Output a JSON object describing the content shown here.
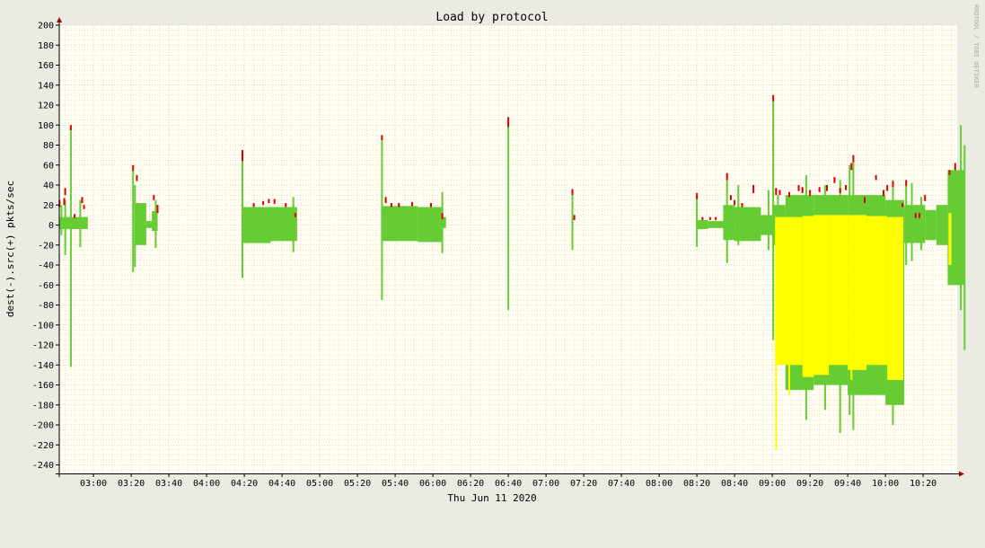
{
  "chart_data": {
    "type": "area",
    "title": "Load by protocol",
    "xlabel": "Thu Jun 11 2020",
    "ylabel": "dest(-).src(+)  pkts/sec",
    "watermark": "RRDTOOL / TOBI OETIKER",
    "ylim": [
      -250,
      205
    ],
    "xlim_minutes": [
      162,
      643
    ],
    "grid": true,
    "y_ticks": [
      200,
      180,
      160,
      140,
      120,
      100,
      80,
      60,
      40,
      20,
      0,
      -20,
      -40,
      -60,
      -80,
      -100,
      -120,
      -140,
      -160,
      -180,
      -200,
      -220,
      -240
    ],
    "x_ticks": [
      {
        "label": "03:00",
        "minute": 180
      },
      {
        "label": "03:20",
        "minute": 200
      },
      {
        "label": "03:40",
        "minute": 220
      },
      {
        "label": "04:00",
        "minute": 240
      },
      {
        "label": "04:20",
        "minute": 260
      },
      {
        "label": "04:40",
        "minute": 280
      },
      {
        "label": "05:00",
        "minute": 300
      },
      {
        "label": "05:20",
        "minute": 320
      },
      {
        "label": "05:40",
        "minute": 340
      },
      {
        "label": "06:00",
        "minute": 360
      },
      {
        "label": "06:20",
        "minute": 380
      },
      {
        "label": "06:40",
        "minute": 400
      },
      {
        "label": "07:00",
        "minute": 420
      },
      {
        "label": "07:20",
        "minute": 440
      },
      {
        "label": "07:40",
        "minute": 460
      },
      {
        "label": "08:00",
        "minute": 480
      },
      {
        "label": "08:20",
        "minute": 500
      },
      {
        "label": "08:40",
        "minute": 520
      },
      {
        "label": "09:00",
        "minute": 540
      },
      {
        "label": "09:20",
        "minute": 560
      },
      {
        "label": "09:40",
        "minute": 580
      },
      {
        "label": "10:00",
        "minute": 600
      },
      {
        "label": "10:20",
        "minute": 620
      }
    ],
    "colors": {
      "background": "#ebebe3",
      "plot": "#fffff4",
      "grid_minor": "#e8b8a0",
      "grid_major": "#d8a890",
      "series_red": "#dd0000",
      "series_green": "#66cc33",
      "series_yellow": "#ffff00",
      "axis_arrow": "#a00000"
    },
    "series": [
      {
        "color_key": "series_yellow",
        "segments": [
          {
            "start": 541.5,
            "end": 556,
            "src": 8,
            "dst": -140
          },
          {
            "start": 556,
            "end": 562,
            "src": 9,
            "dst": -152
          },
          {
            "start": 562,
            "end": 570,
            "src": 10,
            "dst": -150
          },
          {
            "start": 570,
            "end": 580,
            "src": 10,
            "dst": -140
          },
          {
            "start": 580,
            "end": 590,
            "src": 10,
            "dst": -145
          },
          {
            "start": 590,
            "end": 601,
            "src": 9,
            "dst": -140
          },
          {
            "start": 601,
            "end": 609.5,
            "src": 8,
            "dst": -155
          },
          {
            "start": 633.5,
            "end": 635,
            "src": 12,
            "dst": -40
          }
        ],
        "spikes": [
          {
            "t": 542,
            "dst": -225
          },
          {
            "t": 549,
            "dst": -170
          },
          {
            "t": 582,
            "dst": -155
          }
        ]
      },
      {
        "color_key": "series_green",
        "segments": [
          {
            "start": 162,
            "end": 177,
            "src": 8,
            "dst": -4
          },
          {
            "start": 202,
            "end": 208,
            "src": 22,
            "dst": -20
          },
          {
            "start": 208,
            "end": 211,
            "src": 4,
            "dst": -3
          },
          {
            "start": 211,
            "end": 214,
            "src": 14,
            "dst": -6
          },
          {
            "start": 259,
            "end": 274,
            "src": 18,
            "dst": -18
          },
          {
            "start": 274,
            "end": 288,
            "src": 18,
            "dst": -16
          },
          {
            "start": 333,
            "end": 352,
            "src": 19,
            "dst": -16
          },
          {
            "start": 352,
            "end": 365,
            "src": 18,
            "dst": -17
          },
          {
            "start": 365,
            "end": 367,
            "src": 8,
            "dst": -3
          },
          {
            "start": 500,
            "end": 506,
            "src": 5,
            "dst": -4
          },
          {
            "start": 506,
            "end": 514,
            "src": 4,
            "dst": -3
          },
          {
            "start": 514,
            "end": 520,
            "src": 20,
            "dst": -15
          },
          {
            "start": 520,
            "end": 534,
            "src": 18,
            "dst": -16
          },
          {
            "start": 534,
            "end": 540,
            "src": 10,
            "dst": -10
          },
          {
            "start": 540,
            "end": 547,
            "src": 20,
            "dst": -20
          },
          {
            "start": 547,
            "end": 562,
            "src": 30,
            "dst": -165
          },
          {
            "start": 562,
            "end": 580,
            "src": 30,
            "dst": -160
          },
          {
            "start": 580,
            "end": 600,
            "src": 30,
            "dst": -170
          },
          {
            "start": 600,
            "end": 610,
            "src": 25,
            "dst": -180
          },
          {
            "start": 610,
            "end": 621,
            "src": 20,
            "dst": -18
          },
          {
            "start": 621,
            "end": 627,
            "src": 15,
            "dst": -15
          },
          {
            "start": 627,
            "end": 633,
            "src": 20,
            "dst": -20
          },
          {
            "start": 633,
            "end": 642,
            "src": 55,
            "dst": -60
          }
        ],
        "spikes": [
          {
            "t": 163,
            "src": 20,
            "dst": -10
          },
          {
            "t": 165,
            "src": 25,
            "dst": -30
          },
          {
            "t": 168,
            "src": 97,
            "dst": -142
          },
          {
            "t": 173,
            "src": 25,
            "dst": -22
          },
          {
            "t": 201,
            "src": 55,
            "dst": -47
          },
          {
            "t": 202,
            "src": 40,
            "dst": -42
          },
          {
            "t": 213,
            "src": 25,
            "dst": -23
          },
          {
            "t": 259,
            "src": 65,
            "dst": -53
          },
          {
            "t": 286,
            "src": 28,
            "dst": -27
          },
          {
            "t": 333,
            "src": 85,
            "dst": -75
          },
          {
            "t": 365,
            "src": 33,
            "dst": -28
          },
          {
            "t": 400,
            "src": 98,
            "dst": -85
          },
          {
            "t": 434,
            "src": 30,
            "dst": -25
          },
          {
            "t": 500,
            "src": 28,
            "dst": -22
          },
          {
            "t": 516,
            "src": 45,
            "dst": -38
          },
          {
            "t": 522,
            "src": 40,
            "dst": -20
          },
          {
            "t": 538,
            "src": 35,
            "dst": -25
          },
          {
            "t": 540.5,
            "src": 125,
            "dst": -115
          },
          {
            "t": 543,
            "src": 30,
            "dst": -30
          },
          {
            "t": 558,
            "src": 50,
            "dst": -195
          },
          {
            "t": 568,
            "src": 40,
            "dst": -185
          },
          {
            "t": 576,
            "src": 45,
            "dst": -208
          },
          {
            "t": 581,
            "src": 60,
            "dst": -190
          },
          {
            "t": 583,
            "src": 65,
            "dst": -205
          },
          {
            "t": 604,
            "src": 45,
            "dst": -200
          },
          {
            "t": 611,
            "src": 40,
            "dst": -40
          },
          {
            "t": 614,
            "src": 42,
            "dst": -36
          },
          {
            "t": 619,
            "src": 28,
            "dst": -25
          },
          {
            "t": 640,
            "src": 100,
            "dst": -85
          },
          {
            "t": 642,
            "src": 80,
            "dst": -125
          }
        ]
      },
      {
        "color_key": "series_red",
        "spikes": [
          {
            "t": 162,
            "src": 25,
            "base": 18
          },
          {
            "t": 164.5,
            "src": 27,
            "base": 20
          },
          {
            "t": 165,
            "src": 37,
            "base": 30
          },
          {
            "t": 168,
            "src": 100,
            "base": 95
          },
          {
            "t": 170,
            "src": 11,
            "base": 7
          },
          {
            "t": 174,
            "src": 28,
            "base": 22
          },
          {
            "t": 175,
            "src": 20,
            "base": 16
          },
          {
            "t": 201,
            "src": 60,
            "base": 54
          },
          {
            "t": 203,
            "src": 50,
            "base": 44
          },
          {
            "t": 212,
            "src": 30,
            "base": 25
          },
          {
            "t": 214,
            "src": 20,
            "base": 12
          },
          {
            "t": 259,
            "src": 75,
            "base": 64
          },
          {
            "t": 265,
            "src": 22,
            "base": 18
          },
          {
            "t": 270,
            "src": 24,
            "base": 20
          },
          {
            "t": 273,
            "src": 26,
            "base": 22
          },
          {
            "t": 276,
            "src": 26,
            "base": 21
          },
          {
            "t": 282,
            "src": 22,
            "base": 18
          },
          {
            "t": 287,
            "src": 12,
            "base": 8
          },
          {
            "t": 333,
            "src": 90,
            "base": 85
          },
          {
            "t": 335,
            "src": 28,
            "base": 22
          },
          {
            "t": 338,
            "src": 22,
            "base": 18
          },
          {
            "t": 342,
            "src": 22,
            "base": 18
          },
          {
            "t": 349,
            "src": 23,
            "base": 19
          },
          {
            "t": 359,
            "src": 22,
            "base": 18
          },
          {
            "t": 365,
            "src": 12,
            "base": 6
          },
          {
            "t": 400,
            "src": 108,
            "base": 98
          },
          {
            "t": 434,
            "src": 36,
            "base": 30
          },
          {
            "t": 435,
            "src": 10,
            "base": 5
          },
          {
            "t": 500,
            "src": 32,
            "base": 26
          },
          {
            "t": 503,
            "src": 8,
            "base": 5
          },
          {
            "t": 507,
            "src": 8,
            "base": 5
          },
          {
            "t": 510,
            "src": 8,
            "base": 5
          },
          {
            "t": 516,
            "src": 52,
            "base": 45
          },
          {
            "t": 518,
            "src": 30,
            "base": 25
          },
          {
            "t": 520,
            "src": 25,
            "base": 20
          },
          {
            "t": 524,
            "src": 22,
            "base": 18
          },
          {
            "t": 530,
            "src": 40,
            "base": 32
          },
          {
            "t": 540.5,
            "src": 130,
            "base": 124
          },
          {
            "t": 542,
            "src": 37,
            "base": 30
          },
          {
            "t": 544,
            "src": 35,
            "base": 30
          },
          {
            "t": 549,
            "src": 33,
            "base": 28
          },
          {
            "t": 554,
            "src": 40,
            "base": 34
          },
          {
            "t": 556,
            "src": 38,
            "base": 32
          },
          {
            "t": 560,
            "src": 35,
            "base": 29
          },
          {
            "t": 565,
            "src": 38,
            "base": 33
          },
          {
            "t": 569,
            "src": 40,
            "base": 34
          },
          {
            "t": 573,
            "src": 48,
            "base": 42
          },
          {
            "t": 576,
            "src": 37,
            "base": 32
          },
          {
            "t": 579,
            "src": 40,
            "base": 35
          },
          {
            "t": 582,
            "src": 62,
            "base": 55
          },
          {
            "t": 583,
            "src": 70,
            "base": 63
          },
          {
            "t": 589,
            "src": 28,
            "base": 22
          },
          {
            "t": 595,
            "src": 50,
            "base": 45
          },
          {
            "t": 599,
            "src": 35,
            "base": 29
          },
          {
            "t": 601,
            "src": 40,
            "base": 34
          },
          {
            "t": 604,
            "src": 44,
            "base": 38
          },
          {
            "t": 609,
            "src": 22,
            "base": 18
          },
          {
            "t": 611,
            "src": 45,
            "base": 39
          },
          {
            "t": 616,
            "src": 12,
            "base": 7
          },
          {
            "t": 618,
            "src": 12,
            "base": 7
          },
          {
            "t": 621,
            "src": 30,
            "base": 24
          },
          {
            "t": 634,
            "src": 55,
            "base": 50
          },
          {
            "t": 637,
            "src": 62,
            "base": 55
          }
        ]
      }
    ]
  }
}
